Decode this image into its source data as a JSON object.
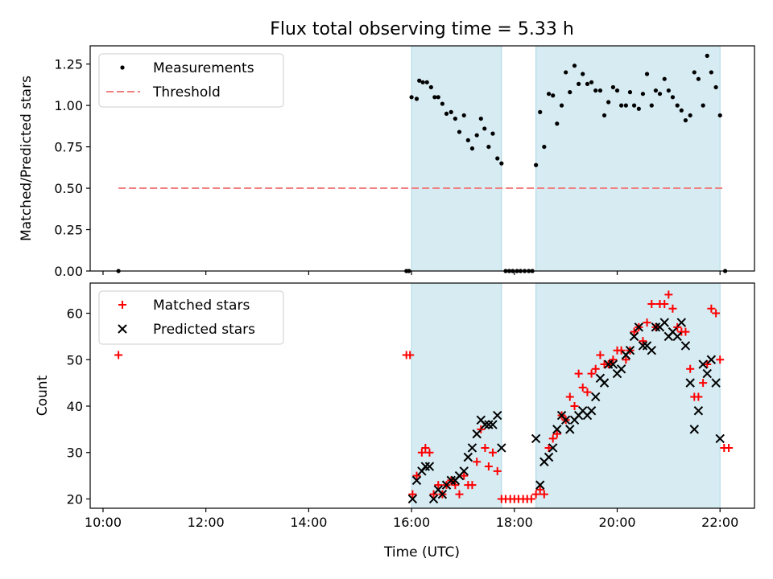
{
  "figure": {
    "title": "Flux total observing time = 5.33 h",
    "xlabel": "Time (UTC)",
    "x_ticks": [
      "10:00",
      "12:00",
      "14:00",
      "16:00",
      "18:00",
      "20:00",
      "22:00"
    ]
  },
  "chart_data": [
    {
      "type": "scatter",
      "ylabel": "Matched/Predicted stars",
      "ylim": [
        0,
        1.36
      ],
      "xlim": [
        9.75,
        22.67
      ],
      "y_ticks": [
        "0.00",
        "0.25",
        "0.50",
        "0.75",
        "1.00",
        "1.25"
      ],
      "legend": {
        "placement": "top-left",
        "entries": [
          "Measurements",
          "Threshold"
        ]
      },
      "shaded_intervals": [
        [
          16.0,
          17.75
        ],
        [
          18.42,
          22.0
        ]
      ],
      "threshold": {
        "name": "Threshold",
        "value": 0.5,
        "x_range": [
          10.3,
          22.1
        ],
        "color": "#f08080"
      },
      "series": [
        {
          "name": "Measurements",
          "color": "#000000",
          "points": [
            [
              10.3,
              0
            ],
            [
              15.9,
              0
            ],
            [
              15.95,
              0
            ],
            [
              16.0,
              1.05
            ],
            [
              16.1,
              1.04
            ],
            [
              16.15,
              1.15
            ],
            [
              16.22,
              1.14
            ],
            [
              16.3,
              1.14
            ],
            [
              16.38,
              1.11
            ],
            [
              16.45,
              1.05
            ],
            [
              16.52,
              1.05
            ],
            [
              16.6,
              1.01
            ],
            [
              16.68,
              0.95
            ],
            [
              16.77,
              0.96
            ],
            [
              16.85,
              0.92
            ],
            [
              16.93,
              0.84
            ],
            [
              17.02,
              0.94
            ],
            [
              17.1,
              0.79
            ],
            [
              17.18,
              0.74
            ],
            [
              17.27,
              0.82
            ],
            [
              17.35,
              0.92
            ],
            [
              17.42,
              0.86
            ],
            [
              17.5,
              0.75
            ],
            [
              17.58,
              0.83
            ],
            [
              17.67,
              0.68
            ],
            [
              17.75,
              0.65
            ],
            [
              17.83,
              0
            ],
            [
              17.9,
              0
            ],
            [
              17.97,
              0
            ],
            [
              18.05,
              0
            ],
            [
              18.12,
              0
            ],
            [
              18.2,
              0
            ],
            [
              18.28,
              0
            ],
            [
              18.35,
              0
            ],
            [
              18.42,
              0.64
            ],
            [
              18.5,
              0.96
            ],
            [
              18.58,
              0.75
            ],
            [
              18.67,
              1.07
            ],
            [
              18.75,
              1.06
            ],
            [
              18.83,
              0.89
            ],
            [
              18.92,
              1.0
            ],
            [
              19.0,
              1.2
            ],
            [
              19.08,
              1.08
            ],
            [
              19.17,
              1.24
            ],
            [
              19.25,
              1.13
            ],
            [
              19.33,
              1.19
            ],
            [
              19.42,
              1.13
            ],
            [
              19.5,
              1.14
            ],
            [
              19.58,
              1.09
            ],
            [
              19.67,
              1.09
            ],
            [
              19.75,
              0.94
            ],
            [
              19.83,
              1.02
            ],
            [
              19.92,
              1.11
            ],
            [
              20.0,
              1.09
            ],
            [
              20.08,
              1.0
            ],
            [
              20.17,
              1.0
            ],
            [
              20.25,
              1.08
            ],
            [
              20.33,
              1.0
            ],
            [
              20.42,
              0.98
            ],
            [
              20.5,
              1.07
            ],
            [
              20.58,
              1.19
            ],
            [
              20.67,
              1.0
            ],
            [
              20.75,
              1.09
            ],
            [
              20.83,
              1.07
            ],
            [
              20.92,
              1.16
            ],
            [
              21.0,
              1.09
            ],
            [
              21.08,
              1.05
            ],
            [
              21.17,
              1.0
            ],
            [
              21.25,
              0.97
            ],
            [
              21.33,
              0.91
            ],
            [
              21.42,
              0.94
            ],
            [
              21.5,
              1.2
            ],
            [
              21.58,
              1.16
            ],
            [
              21.67,
              1.0
            ],
            [
              21.75,
              1.3
            ],
            [
              21.83,
              1.2
            ],
            [
              21.92,
              1.11
            ],
            [
              22.0,
              0.94
            ],
            [
              22.1,
              0
            ]
          ]
        }
      ]
    },
    {
      "type": "scatter",
      "ylabel": "Count",
      "ylim": [
        18,
        66.5
      ],
      "xlim": [
        9.75,
        22.67
      ],
      "y_ticks": [
        "20",
        "30",
        "40",
        "50",
        "60"
      ],
      "legend": {
        "placement": "top-left",
        "entries": [
          "Matched stars",
          "Predicted stars"
        ]
      },
      "shaded_intervals": [
        [
          16.0,
          17.75
        ],
        [
          18.42,
          22.0
        ]
      ],
      "series": [
        {
          "name": "Matched stars",
          "marker": "plus",
          "color": "#ff0000",
          "points": [
            [
              10.3,
              51
            ],
            [
              15.9,
              51
            ],
            [
              15.97,
              51
            ],
            [
              16.02,
              21
            ],
            [
              16.1,
              25
            ],
            [
              16.2,
              30
            ],
            [
              16.27,
              31
            ],
            [
              16.35,
              30
            ],
            [
              16.43,
              21
            ],
            [
              16.52,
              23
            ],
            [
              16.6,
              21
            ],
            [
              16.68,
              23
            ],
            [
              16.77,
              24
            ],
            [
              16.85,
              23
            ],
            [
              16.93,
              21
            ],
            [
              17.02,
              25
            ],
            [
              17.1,
              23
            ],
            [
              17.18,
              23
            ],
            [
              17.27,
              28
            ],
            [
              17.35,
              35
            ],
            [
              17.43,
              31
            ],
            [
              17.5,
              27
            ],
            [
              17.58,
              30
            ],
            [
              17.67,
              26
            ],
            [
              17.75,
              20
            ],
            [
              17.83,
              20
            ],
            [
              17.92,
              20
            ],
            [
              18.0,
              20
            ],
            [
              18.08,
              20
            ],
            [
              18.17,
              20
            ],
            [
              18.25,
              20
            ],
            [
              18.33,
              20
            ],
            [
              18.42,
              21
            ],
            [
              18.5,
              22
            ],
            [
              18.58,
              21
            ],
            [
              18.67,
              31
            ],
            [
              18.75,
              33
            ],
            [
              18.83,
              34
            ],
            [
              18.92,
              38
            ],
            [
              19.0,
              37
            ],
            [
              19.08,
              42
            ],
            [
              19.17,
              40
            ],
            [
              19.25,
              47
            ],
            [
              19.33,
              44
            ],
            [
              19.42,
              43
            ],
            [
              19.5,
              47
            ],
            [
              19.58,
              48
            ],
            [
              19.67,
              51
            ],
            [
              19.75,
              49
            ],
            [
              19.83,
              49
            ],
            [
              19.92,
              50
            ],
            [
              20.0,
              52
            ],
            [
              20.08,
              52
            ],
            [
              20.17,
              50
            ],
            [
              20.25,
              52
            ],
            [
              20.33,
              56
            ],
            [
              20.42,
              57
            ],
            [
              20.5,
              54
            ],
            [
              20.58,
              58
            ],
            [
              20.67,
              62
            ],
            [
              20.75,
              57
            ],
            [
              20.83,
              62
            ],
            [
              20.92,
              62
            ],
            [
              21.0,
              64
            ],
            [
              21.08,
              61
            ],
            [
              21.17,
              57
            ],
            [
              21.25,
              56
            ],
            [
              21.33,
              56
            ],
            [
              21.42,
              48
            ],
            [
              21.5,
              42
            ],
            [
              21.58,
              42
            ],
            [
              21.67,
              45
            ],
            [
              21.75,
              49
            ],
            [
              21.83,
              61
            ],
            [
              21.92,
              60
            ],
            [
              22.0,
              50
            ],
            [
              22.08,
              31
            ],
            [
              22.17,
              31
            ]
          ]
        },
        {
          "name": "Predicted stars",
          "marker": "cross",
          "color": "#000000",
          "points": [
            [
              16.02,
              20
            ],
            [
              16.1,
              24
            ],
            [
              16.2,
              26
            ],
            [
              16.27,
              27
            ],
            [
              16.35,
              27
            ],
            [
              16.43,
              20
            ],
            [
              16.52,
              22
            ],
            [
              16.6,
              21
            ],
            [
              16.68,
              23
            ],
            [
              16.77,
              24
            ],
            [
              16.85,
              24
            ],
            [
              16.93,
              25
            ],
            [
              17.02,
              26
            ],
            [
              17.1,
              29
            ],
            [
              17.18,
              31
            ],
            [
              17.27,
              34
            ],
            [
              17.35,
              37
            ],
            [
              17.43,
              36
            ],
            [
              17.5,
              36
            ],
            [
              17.58,
              36
            ],
            [
              17.67,
              38
            ],
            [
              17.75,
              31
            ],
            [
              18.42,
              33
            ],
            [
              18.5,
              23
            ],
            [
              18.58,
              28
            ],
            [
              18.67,
              29
            ],
            [
              18.75,
              31
            ],
            [
              18.83,
              35
            ],
            [
              18.92,
              38
            ],
            [
              19.0,
              37
            ],
            [
              19.08,
              35
            ],
            [
              19.17,
              37
            ],
            [
              19.25,
              38
            ],
            [
              19.33,
              39
            ],
            [
              19.42,
              38
            ],
            [
              19.5,
              39
            ],
            [
              19.58,
              42
            ],
            [
              19.67,
              46
            ],
            [
              19.75,
              45
            ],
            [
              19.83,
              49
            ],
            [
              19.92,
              49
            ],
            [
              20.0,
              47
            ],
            [
              20.08,
              48
            ],
            [
              20.17,
              51
            ],
            [
              20.25,
              52
            ],
            [
              20.33,
              55
            ],
            [
              20.42,
              57
            ],
            [
              20.5,
              53
            ],
            [
              20.58,
              53
            ],
            [
              20.67,
              52
            ],
            [
              20.75,
              57
            ],
            [
              20.83,
              57
            ],
            [
              20.92,
              58
            ],
            [
              21.0,
              55
            ],
            [
              21.08,
              56
            ],
            [
              21.17,
              55
            ],
            [
              21.25,
              58
            ],
            [
              21.33,
              53
            ],
            [
              21.42,
              45
            ],
            [
              21.5,
              35
            ],
            [
              21.58,
              39
            ],
            [
              21.67,
              49
            ],
            [
              21.75,
              47
            ],
            [
              21.83,
              50
            ],
            [
              21.92,
              45
            ],
            [
              22.0,
              33
            ]
          ]
        }
      ]
    }
  ]
}
